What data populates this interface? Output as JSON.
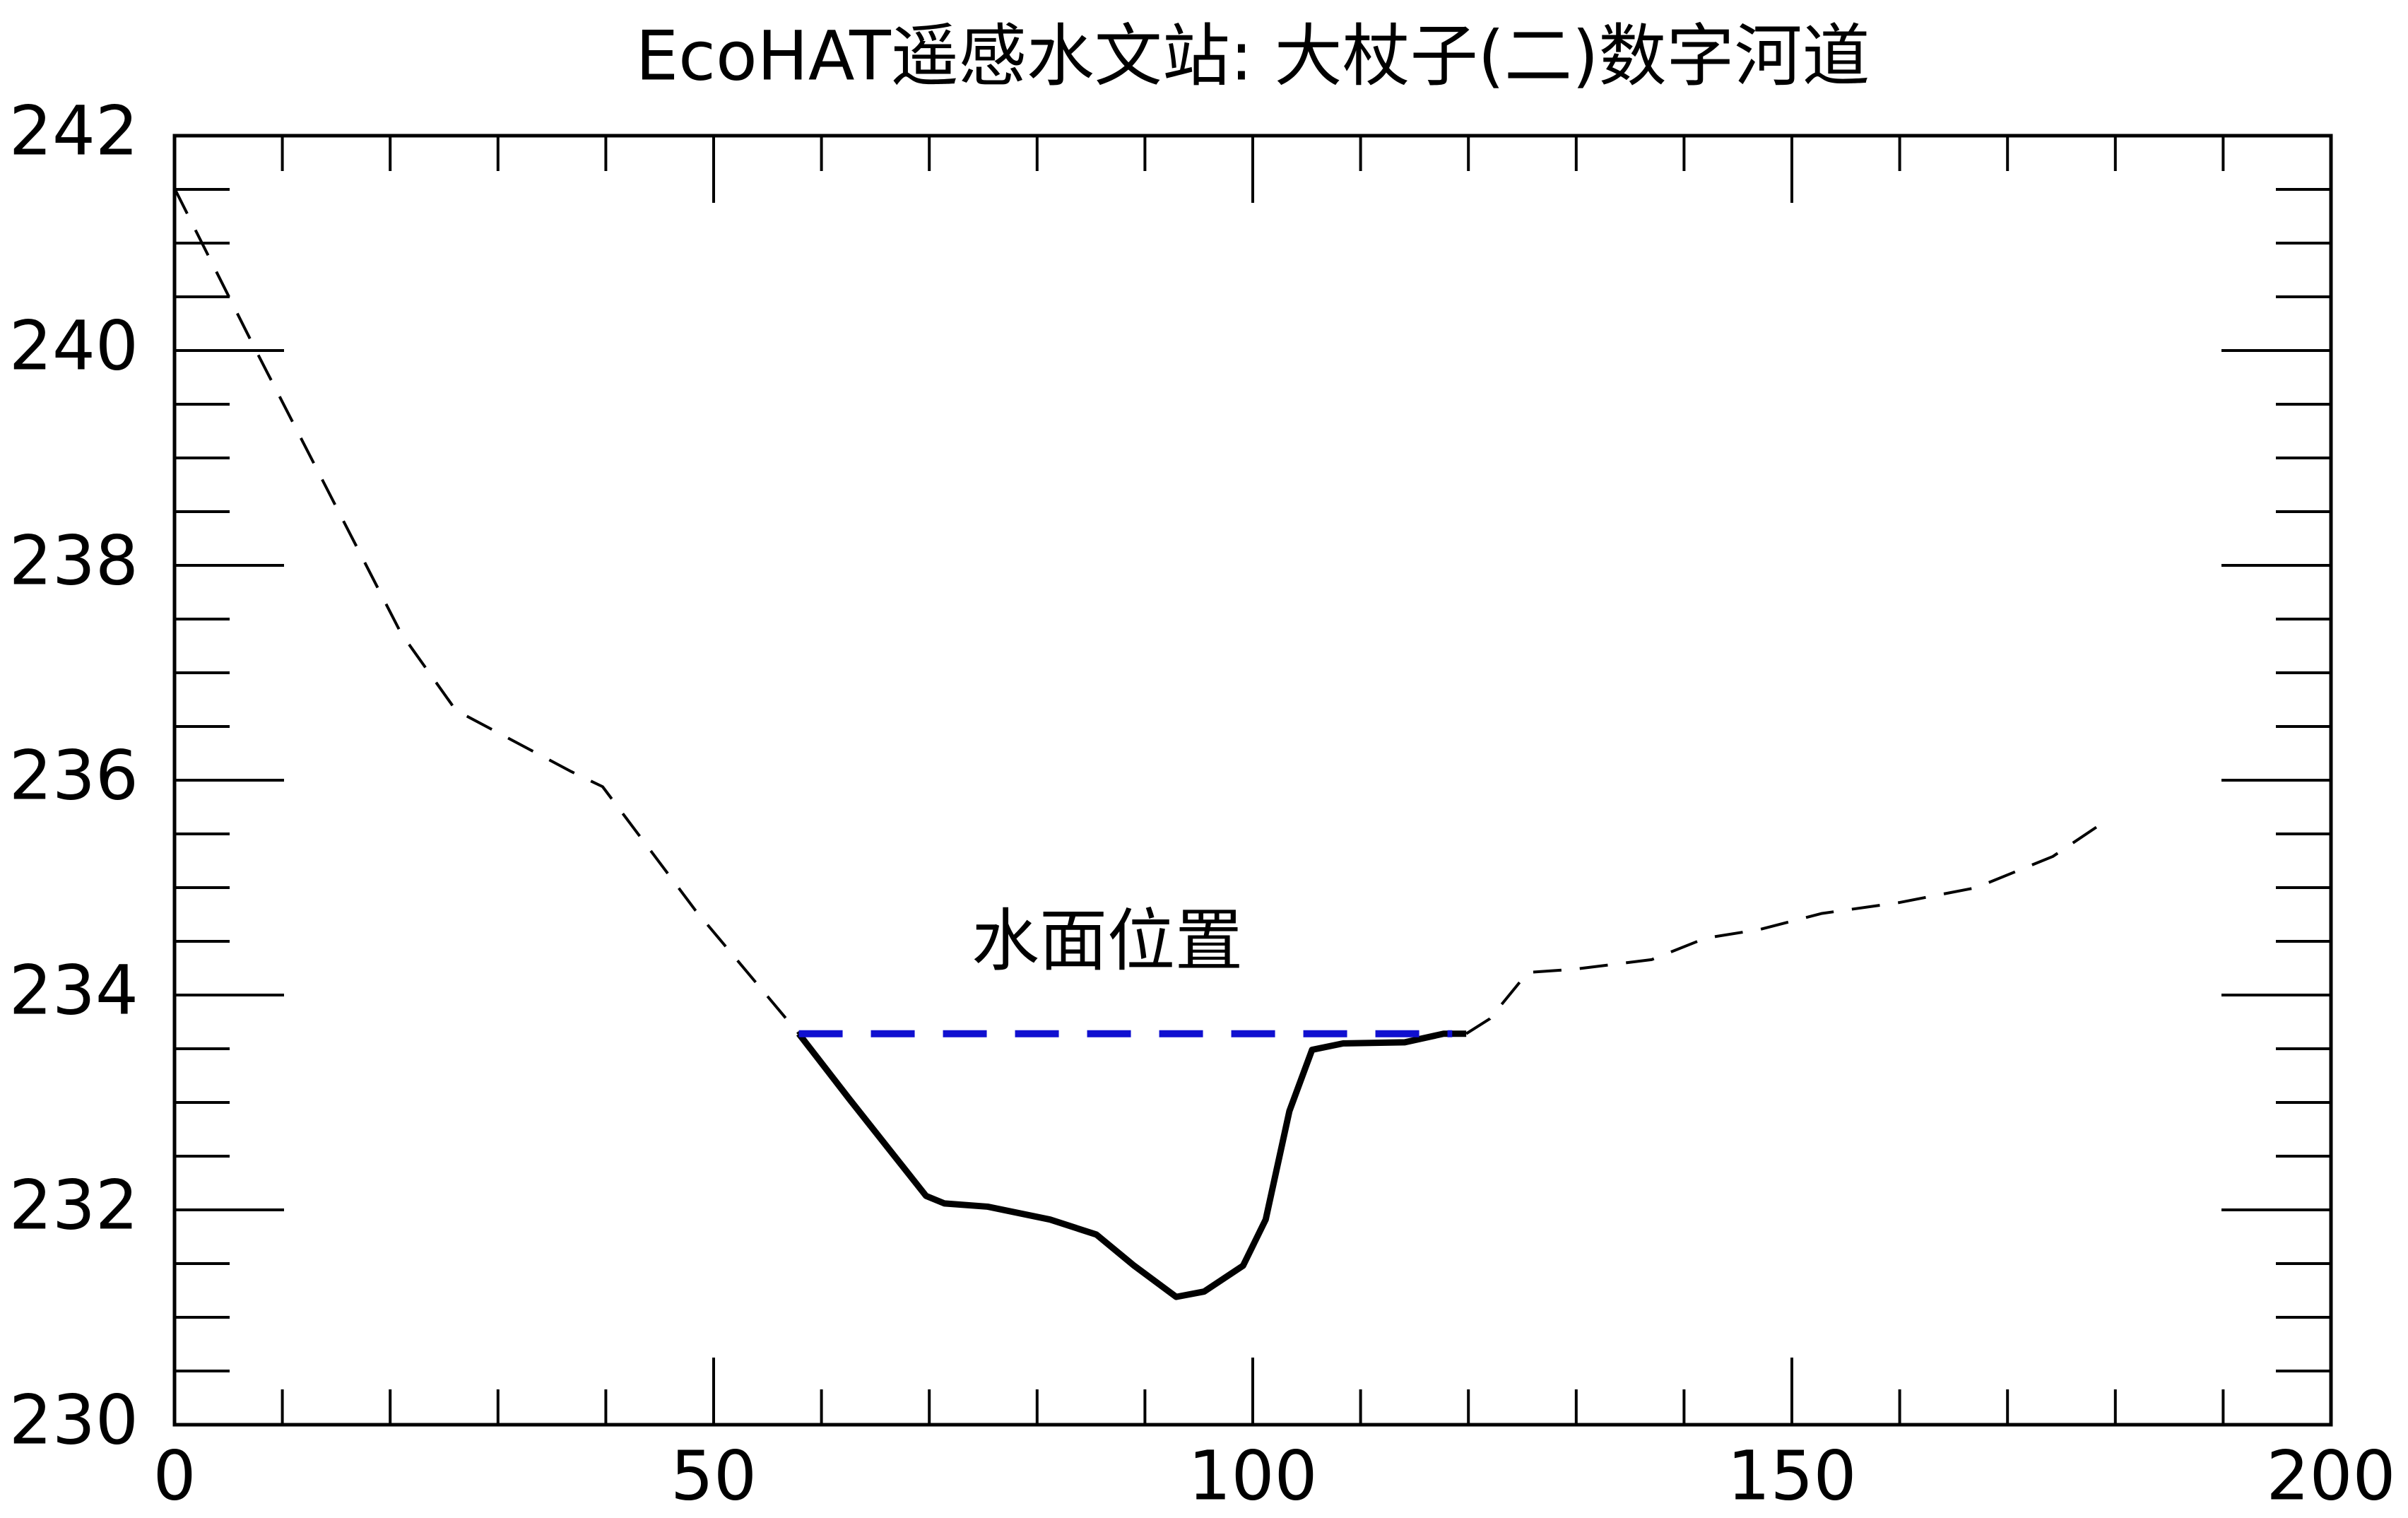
{
  "chart_data": {
    "type": "line",
    "title": "EcoHAT遥感水文站: 大杖子(二)数字河道",
    "xlim": [
      0,
      200
    ],
    "xticks": [
      0,
      50,
      100,
      150,
      200
    ],
    "ylim": [
      230,
      242
    ],
    "yticks": [
      230,
      232,
      234,
      236,
      238,
      240,
      242
    ],
    "series": [
      {
        "color": "#000000",
        "style": "dashed",
        "x": [
          0,
          7.4,
          21.0,
          26.1,
          36.8,
          39.7,
          48.3,
          57.9
        ],
        "values": [
          241.51,
          240.03,
          237.37,
          236.65,
          236.08,
          235.94,
          234.79,
          233.64
        ]
      },
      {
        "color": "#000000",
        "style": "solid",
        "x": [
          57.9,
          62.6,
          69.7,
          71.4,
          75.4,
          81.2,
          85.5,
          89.0,
          92.9,
          95.5,
          99.1,
          101.2,
          103.4,
          105.5,
          108.4,
          114.1,
          117.7,
          119.8
        ],
        "values": [
          233.64,
          233.03,
          232.13,
          232.06,
          232.03,
          231.91,
          231.77,
          231.48,
          231.19,
          231.24,
          231.48,
          231.91,
          232.92,
          233.49,
          233.55,
          233.56,
          233.64,
          233.64
        ]
      },
      {
        "color": "#000000",
        "style": "dashed",
        "x": [
          119.8,
          122.0,
          125.5,
          129.8,
          137.0,
          142.0,
          147.0,
          152.8,
          159.9,
          167.1,
          174.2,
          178.5
        ],
        "values": [
          233.64,
          233.78,
          234.21,
          234.24,
          234.33,
          234.53,
          234.61,
          234.76,
          234.86,
          235.0,
          235.29,
          235.58
        ]
      },
      {
        "color": "#1010d0",
        "style": "water",
        "x": [
          57.9,
          118.5
        ],
        "values": [
          233.64,
          233.64
        ]
      }
    ],
    "annotation": {
      "text": "水面位置",
      "color": "#1a1a6e"
    }
  }
}
